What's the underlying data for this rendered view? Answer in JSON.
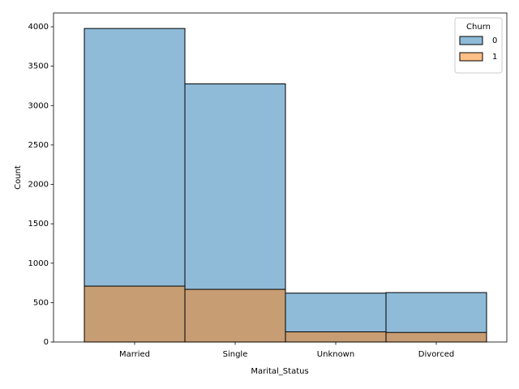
{
  "chart_data": {
    "type": "bar",
    "xlabel": "Marital_Status",
    "ylabel": "Count",
    "categories": [
      "Married",
      "Single",
      "Unknown",
      "Divorced"
    ],
    "series": [
      {
        "name": "0",
        "color": "#1f77b4",
        "values": [
          3978,
          3275,
          620,
          627
        ]
      },
      {
        "name": "1",
        "color": "#ff7f0e",
        "values": [
          709,
          668,
          129,
          121
        ]
      }
    ],
    "legend_title": "Churn",
    "legend": "upper right",
    "ylim": [
      0,
      4175
    ],
    "yticks": [
      0,
      500,
      1000,
      1500,
      2000,
      2500,
      3000,
      3500,
      4000
    ]
  }
}
